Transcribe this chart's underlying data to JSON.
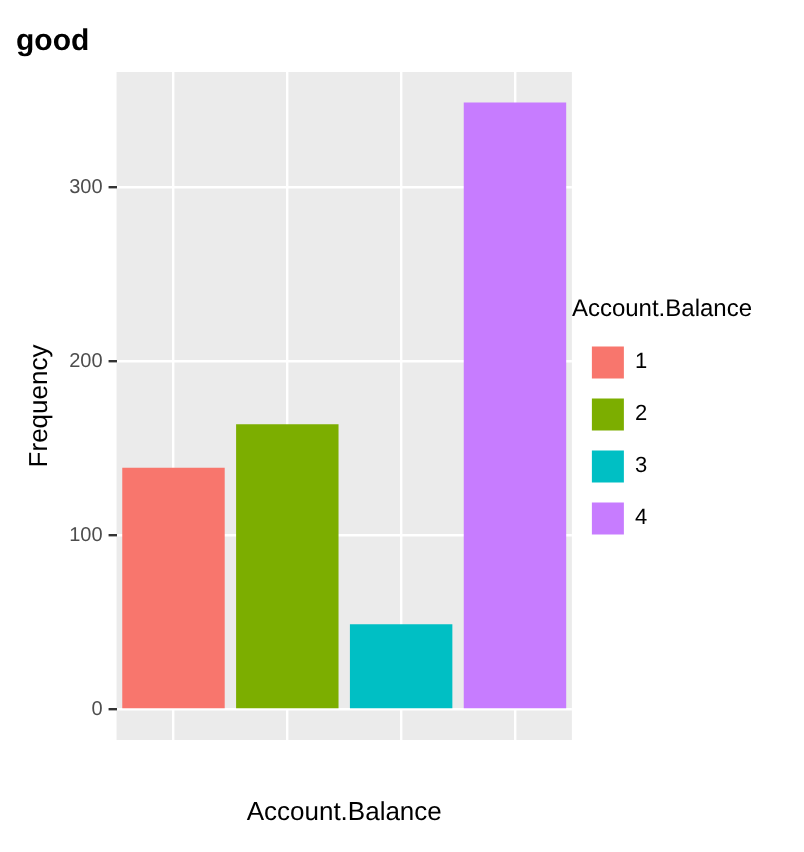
{
  "chart_data": {
    "type": "bar",
    "title": "good",
    "xlabel": "Account.Balance",
    "ylabel": "Frequency",
    "legend_title": "Account.Balance",
    "categories": [
      null,
      null,
      null,
      null
    ],
    "series": [
      {
        "name": "1",
        "color": "#f8766d",
        "values": [
          139,
          null,
          null,
          null
        ]
      },
      {
        "name": "2",
        "color": "#7cae00",
        "values": [
          null,
          164,
          null,
          null
        ]
      },
      {
        "name": "3",
        "color": "#00bfc4",
        "values": [
          null,
          null,
          49,
          null
        ]
      },
      {
        "name": "4",
        "color": "#c77cff",
        "values": [
          null,
          null,
          null,
          349
        ]
      }
    ],
    "ylim": [
      -17.5,
      366.5
    ],
    "yticks": [
      0,
      100,
      200,
      300
    ],
    "grid": true,
    "legend": "right"
  }
}
